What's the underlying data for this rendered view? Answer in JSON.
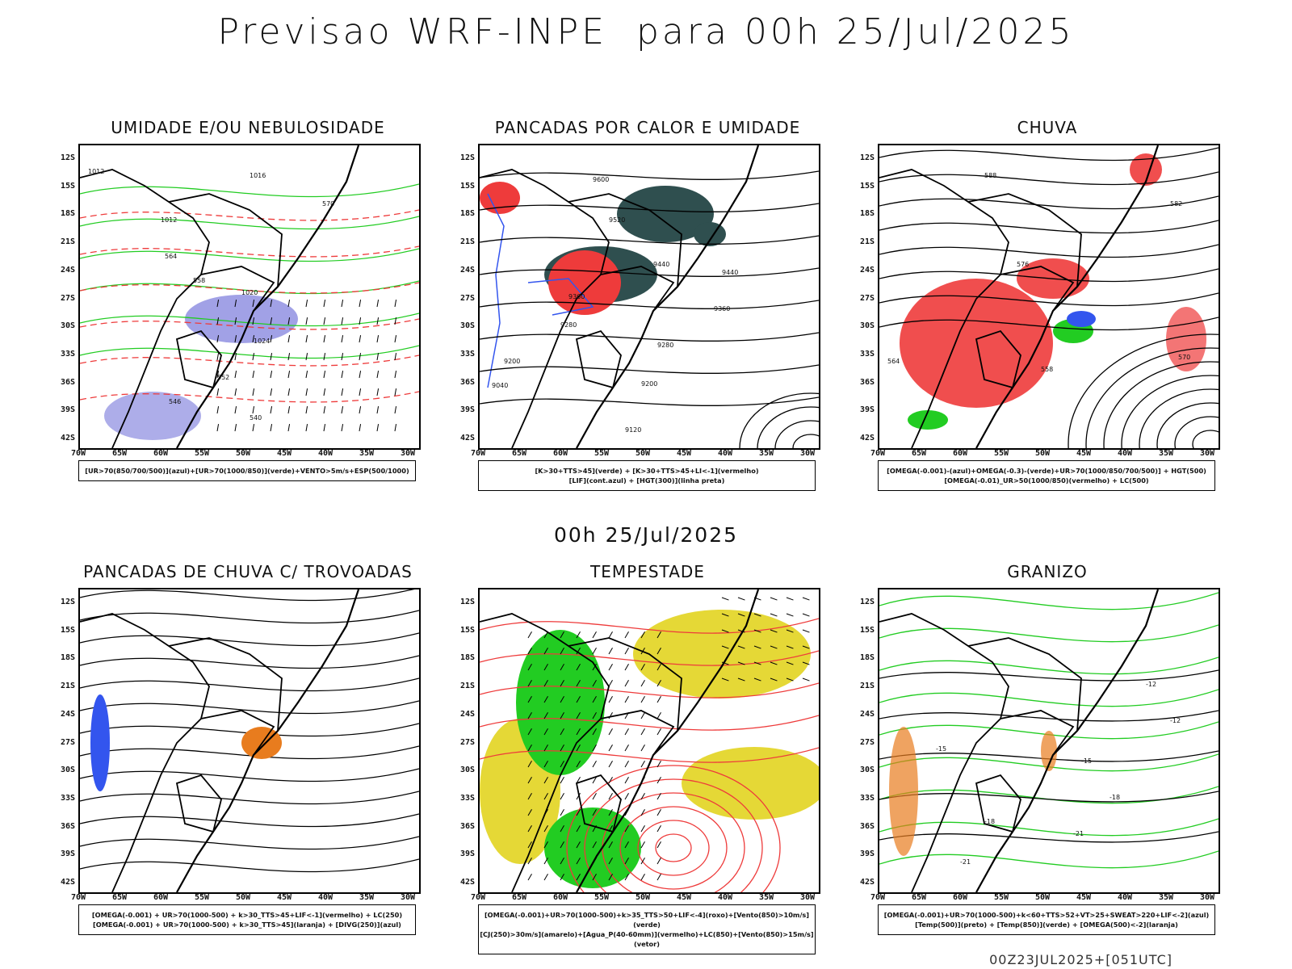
{
  "header": {
    "main_title": "Previsao WRF-INPE  para 00h 25/Jul/2025",
    "mid_title": "00h 25/Jul/2025"
  },
  "axes": {
    "lat_labels": [
      "12S",
      "15S",
      "18S",
      "21S",
      "24S",
      "27S",
      "30S",
      "33S",
      "36S",
      "39S",
      "42S"
    ],
    "lon_labels": [
      "70W",
      "65W",
      "60W",
      "55W",
      "50W",
      "45W",
      "40W",
      "35W",
      "30W"
    ]
  },
  "panels": [
    {
      "title": "UMIDADE E/OU NEBULOSIDADE",
      "legend": [
        "[UR>70(850/700/500)](azul)+[UR>70(1000/850)](verde)+VENTO>5m/s+ESP(500/1000)"
      ],
      "contour_labels": [
        "1012",
        "1016",
        "1012",
        "1020",
        "1024",
        "570",
        "564",
        "558",
        "552",
        "546",
        "540"
      ]
    },
    {
      "title": "PANCADAS POR CALOR E UMIDADE",
      "legend": [
        "[K>30+TTS>45](verde) + [K>30+TTS>45+LI<-1](vermelho)",
        "[LIF](cont.azul) + [HGT(300)](linha preta)"
      ],
      "contour_labels": [
        "9600",
        "9520",
        "9440",
        "9440",
        "9360",
        "9360",
        "9280",
        "9280",
        "9200",
        "9200",
        "9120",
        "9040"
      ]
    },
    {
      "title": "CHUVA",
      "legend": [
        "[OMEGA(-0.001)-(azul)+OMEGA(-0.3)-(verde)+UR>70(1000/850/700/500)] + HGT(500)",
        "[OMEGA(-0.01)_UR>50(1000/850)(vermelho) + LC(500)"
      ],
      "contour_labels": [
        "588",
        "582",
        "576",
        "570",
        "564",
        "558"
      ]
    },
    {
      "title": "PANCADAS DE CHUVA C/ TROVOADAS",
      "legend": [
        "[OMEGA(-0.001) + UR>70(1000-500) + k>30_TTS>45+LIF<-1](vermelho) + LC(250)",
        "[OMEGA(-0.001) + UR>70(1000-500) + k>30_TTS>45](laranja) + [DIVG(250)](azul)"
      ],
      "contour_labels": []
    },
    {
      "title": "TEMPESTADE",
      "legend": [
        "[OMEGA(-0.001)+UR>70(1000-500)+k>35_TTS>50+LIF<-4](roxo)+[Vento(850)>10m/s](verde)",
        "[CJ(250)>30m/s](amarelo)+[Agua_P(40-60mm)](vermelho)+LC(850)+[Vento(850)>15m/s](vetor)"
      ],
      "contour_labels": []
    },
    {
      "title": "GRANIZO",
      "legend": [
        "[OMEGA(-0.001)+UR>70(1000-500)+k<60+TTS>52+VT>25+SWEAT>220+LIF<-2](azul)",
        "[Temp(500)](preto) + [Temp(850)](verde) + [OMEGA(500)<-2](laranja)"
      ],
      "contour_labels": [
        "-12",
        "-15",
        "-18",
        "-21",
        "-21",
        "-18",
        "-15",
        "-12"
      ]
    }
  ],
  "colors": {
    "green": "#22cc22",
    "red": "#ee3b3b",
    "blue": "#3355ee",
    "purple": "#8a8ae0",
    "teal": "#2f4f4f",
    "yellow": "#e5d836",
    "orange": "#e87c1e"
  },
  "footer": {
    "run_label": "00Z23JUL2025+[051UTC]"
  }
}
